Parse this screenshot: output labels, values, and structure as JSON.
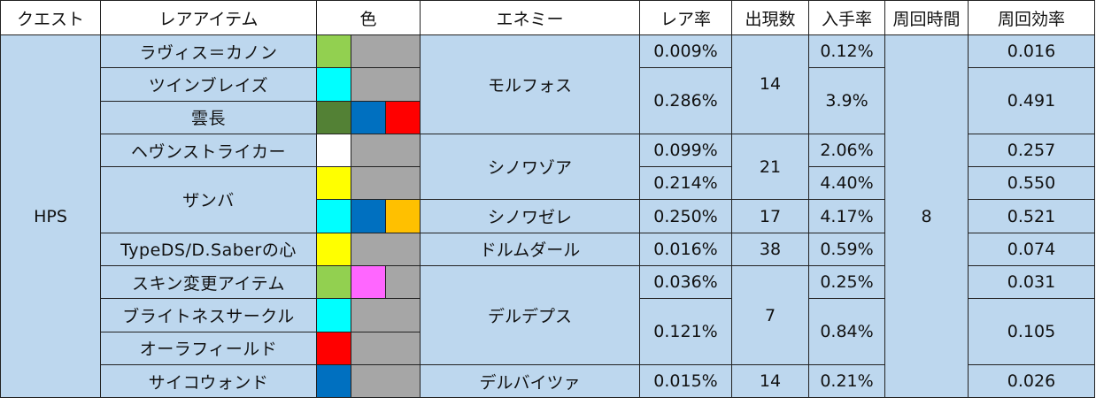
{
  "headers": {
    "quest": "クエスト",
    "rare_item": "レアアイテム",
    "color": "色",
    "enemy": "エネミー",
    "rare_rate": "レア率",
    "appear_count": "出現数",
    "obtain_rate": "入手率",
    "loop_time": "周回時間",
    "loop_eff": "周回効率"
  },
  "quest": "HPS",
  "loop_time": "8",
  "colors": {
    "light_green": "#92d050",
    "cyan": "#00ffff",
    "dark_green": "#538135",
    "blue": "#0070c0",
    "red": "#ff0000",
    "white": "#ffffff",
    "yellow": "#ffff00",
    "orange": "#ffc000",
    "pink": "#ff66ff",
    "gray": "#a6a6a6",
    "row_blue": "#bdd7ee"
  },
  "rows": [
    {
      "item": "ラヴィス＝カノン",
      "rare_rate": "0.009%",
      "obtain_rate": "0.12%",
      "efficiency": "0.016"
    },
    {
      "item": "ツインブレイズ",
      "rare_rate": "0.286%",
      "obtain_rate": "3.9%",
      "efficiency": "0.491"
    },
    {
      "item": "雲長"
    },
    {
      "item": "ヘヴンストライカー",
      "rare_rate": "0.099%",
      "obtain_rate": "2.06%",
      "efficiency": "0.257"
    },
    {
      "item": "ザンバ",
      "rare_rate": "0.214%",
      "obtain_rate": "4.40%",
      "efficiency": "0.550"
    },
    {
      "rare_rate": "0.250%",
      "obtain_rate": "4.17%",
      "efficiency": "0.521"
    },
    {
      "item": "TypeDS/D.Saberの心",
      "rare_rate": "0.016%",
      "obtain_rate": "0.59%",
      "efficiency": "0.074"
    },
    {
      "item": "スキン変更アイテム",
      "rare_rate": "0.036%",
      "obtain_rate": "0.25%",
      "efficiency": "0.031"
    },
    {
      "item": "ブライトネスサークル",
      "rare_rate": "0.121%",
      "obtain_rate": "0.84%",
      "efficiency": "0.105"
    },
    {
      "item": "オーラフィールド"
    },
    {
      "item": "サイコウォンド",
      "rare_rate": "0.015%",
      "obtain_rate": "0.21%",
      "efficiency": "0.026"
    }
  ],
  "enemies": {
    "morufosu": {
      "name": "モルフォス",
      "count": "14"
    },
    "shinowazoa": {
      "name": "シノワゾア",
      "count": "21"
    },
    "shinowazere": {
      "name": "シノワゼレ",
      "count": "17"
    },
    "dorumudaru": {
      "name": "ドルムダール",
      "count": "38"
    },
    "derudepusu": {
      "name": "デルデプス",
      "count": "7"
    },
    "derubaitsua": {
      "name": "デルバイツァ",
      "count": "14"
    }
  }
}
